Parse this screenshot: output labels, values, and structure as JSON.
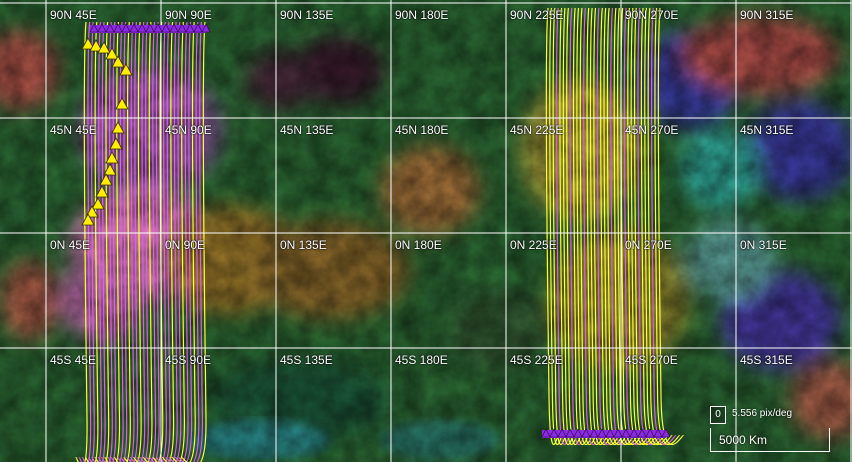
{
  "map": {
    "grid_labels": [
      "90N 45E",
      "90N 90E",
      "90N 135E",
      "90N 180E",
      "90N 225E",
      "90N 270E",
      "90N 315E",
      "45N 45E",
      "45N 90E",
      "45N 135E",
      "45N 180E",
      "45N 225E",
      "45N 270E",
      "45N 315E",
      "0N 45E",
      "0N 90E",
      "0N 135E",
      "0N 180E",
      "0N 225E",
      "0N 270E",
      "0N 315E",
      "45S 45E",
      "45S 90E",
      "45S 135E",
      "45S 180E",
      "45S 225E",
      "45S 270E",
      "45S 315E"
    ],
    "colors": {
      "grid": "#ffffff",
      "track_yellow": "#ffff33",
      "track_magenta": "#e060e0",
      "marker_yellow": "#ffee00",
      "marker_purple": "#8a2be2"
    },
    "scale": {
      "zoom_index": "0",
      "resolution": "5.556 pix/deg",
      "distance": "5000 Km"
    }
  }
}
